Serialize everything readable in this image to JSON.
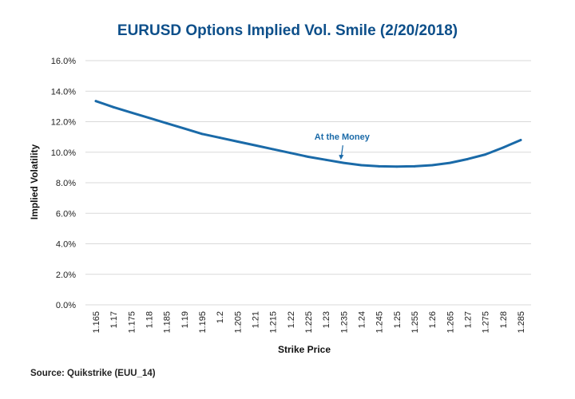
{
  "chart_data": {
    "type": "line",
    "title": "EURUSD Options Implied Vol. Smile (2/20/2018)",
    "xlabel": "Strike Price",
    "ylabel": "Implied Volatility",
    "ylim": [
      0,
      16
    ],
    "yticks": [
      0,
      2,
      4,
      6,
      8,
      10,
      12,
      14,
      16
    ],
    "ytick_labels": [
      "0.0%",
      "2.0%",
      "4.0%",
      "6.0%",
      "8.0%",
      "10.0%",
      "12.0%",
      "14.0%",
      "16.0%"
    ],
    "categories": [
      "1.165",
      "1.17",
      "1.175",
      "1.18",
      "1.185",
      "1.19",
      "1.195",
      "1.2",
      "1.205",
      "1.21",
      "1.215",
      "1.22",
      "1.225",
      "1.23",
      "1.235",
      "1.24",
      "1.245",
      "1.25",
      "1.255",
      "1.26",
      "1.265",
      "1.27",
      "1.275",
      "1.28",
      "1.285"
    ],
    "values": [
      13.35,
      12.95,
      12.6,
      12.25,
      11.9,
      11.55,
      11.2,
      10.95,
      10.7,
      10.45,
      10.2,
      9.95,
      9.7,
      9.5,
      9.3,
      9.15,
      9.08,
      9.06,
      9.08,
      9.15,
      9.3,
      9.55,
      9.85,
      10.3,
      10.8
    ],
    "grid": true,
    "colors": {
      "line": "#1a6aa8",
      "title": "#0d4f8a",
      "grid": "#d9d9d9",
      "annotation": "#1a6aa8"
    },
    "annotation": {
      "text": "At the Money",
      "x": "1.235",
      "y": 9.3
    }
  },
  "source": "Source: Quikstrike (EUU_14)"
}
